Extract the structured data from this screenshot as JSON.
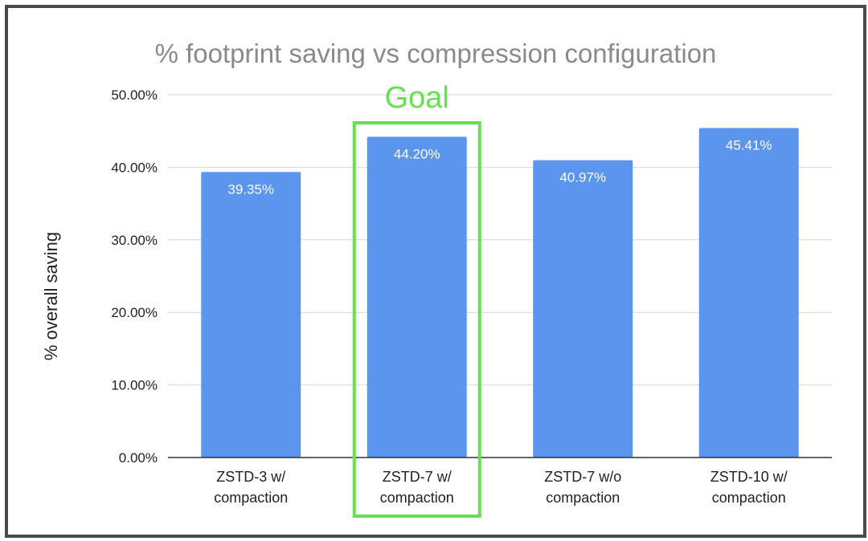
{
  "chart_data": {
    "type": "bar",
    "title": "% footprint saving vs compression configuration",
    "xlabel": "",
    "ylabel": "% overall saving",
    "categories": [
      [
        "ZSTD-3 w/",
        "compaction"
      ],
      [
        "ZSTD-7 w/",
        "compaction"
      ],
      [
        "ZSTD-7 w/o",
        "compaction"
      ],
      [
        "ZSTD-10 w/",
        "compaction"
      ]
    ],
    "values": [
      39.35,
      44.2,
      40.97,
      45.41
    ],
    "value_labels": [
      "39.35%",
      "44.20%",
      "40.97%",
      "45.41%"
    ],
    "ylim": [
      0,
      50
    ],
    "yticks": [
      0,
      10,
      20,
      30,
      40,
      50
    ],
    "ytick_labels": [
      "0.00%",
      "10.00%",
      "20.00%",
      "30.00%",
      "40.00%",
      "50.00%"
    ],
    "grid": true,
    "bar_color": "#5b95ee",
    "highlight": {
      "label": "Goal",
      "category_index": 1,
      "color": "#66e04f"
    }
  }
}
